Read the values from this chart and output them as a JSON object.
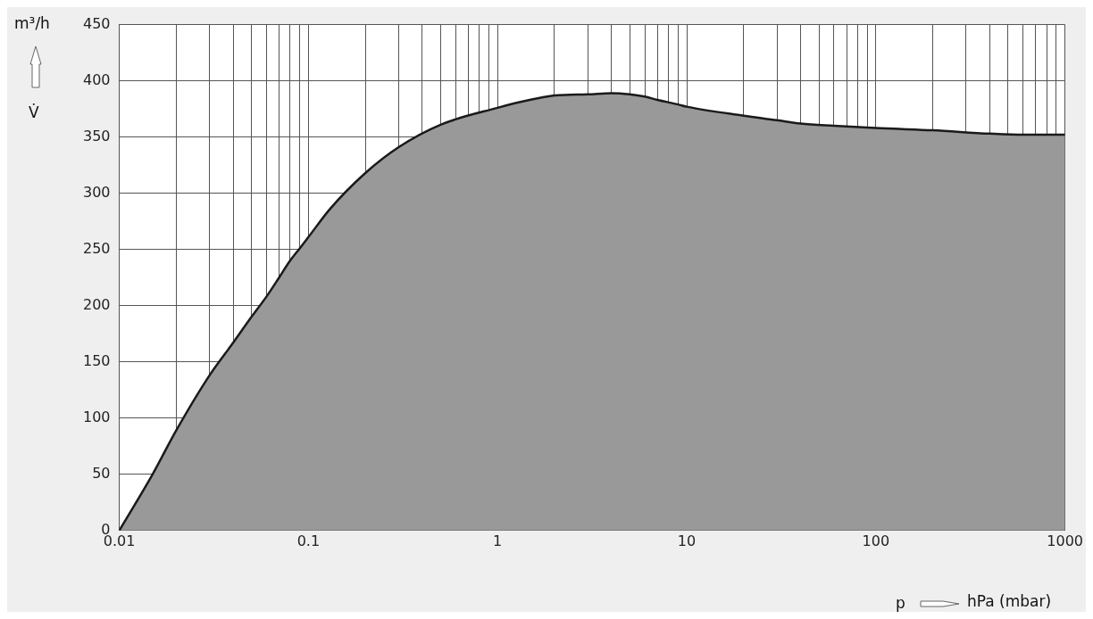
{
  "chart_data": {
    "type": "area",
    "xlabel": "hPa (mbar)",
    "ylabel": "m³/h",
    "annotations": [
      "p",
      "V̇"
    ],
    "log": "x",
    "grid": true,
    "legend": false,
    "xlim": [
      0.01,
      1000
    ],
    "ylim": [
      0,
      450
    ],
    "xticks": [
      0.01,
      {
        "value": 0.02,
        "label": null
      },
      {
        "value": 0.03,
        "label": null
      },
      {
        "value": 0.04,
        "label": null
      },
      {
        "value": 0.05,
        "label": null
      },
      {
        "value": 0.06,
        "label": null
      },
      {
        "value": 0.07,
        "label": null
      },
      {
        "value": 0.08,
        "label": null
      },
      {
        "value": 0.09,
        "label": null
      },
      0.1,
      {
        "value": 0.2,
        "label": null
      },
      {
        "value": 0.3,
        "label": null
      },
      {
        "value": 0.4,
        "label": null
      },
      {
        "value": 0.5,
        "label": null
      },
      {
        "value": 0.6,
        "label": null
      },
      {
        "value": 0.7,
        "label": null
      },
      {
        "value": 0.8,
        "label": null
      },
      {
        "value": 0.9,
        "label": null
      },
      1,
      {
        "value": 2,
        "label": null
      },
      {
        "value": 3,
        "label": null
      },
      {
        "value": 4,
        "label": null
      },
      {
        "value": 5,
        "label": null
      },
      {
        "value": 6,
        "label": null
      },
      {
        "value": 7,
        "label": null
      },
      {
        "value": 8,
        "label": null
      },
      {
        "value": 9,
        "label": null
      },
      10,
      {
        "value": 20,
        "label": null
      },
      {
        "value": 30,
        "label": null
      },
      {
        "value": 40,
        "label": null
      },
      {
        "value": 50,
        "label": null
      },
      {
        "value": 60,
        "label": null
      },
      {
        "value": 70,
        "label": null
      },
      {
        "value": 80,
        "label": null
      },
      {
        "value": 90,
        "label": null
      },
      100,
      {
        "value": 200,
        "label": null
      },
      {
        "value": 300,
        "label": null
      },
      {
        "value": 400,
        "label": null
      },
      {
        "value": 500,
        "label": null
      },
      {
        "value": 600,
        "label": null
      },
      {
        "value": 700,
        "label": null
      },
      {
        "value": 800,
        "label": null
      },
      {
        "value": 900,
        "label": null
      },
      1000
    ],
    "yticks": [
      0,
      50,
      100,
      150,
      200,
      250,
      300,
      350,
      400,
      450
    ],
    "series": [
      {
        "color": "#999999",
        "x": [
          0.01,
          0.015,
          0.02,
          0.03,
          0.04,
          0.05,
          0.06,
          0.07,
          0.08,
          0.09,
          0.1,
          0.13,
          0.2,
          0.3,
          0.5,
          1,
          1.39,
          2,
          3,
          4,
          5,
          6,
          7,
          9,
          10,
          20,
          30,
          40,
          60,
          100,
          200,
          400,
          600,
          1000
        ],
        "values": [
          0,
          50,
          89,
          138,
          167,
          190,
          208,
          225,
          240,
          251,
          261,
          286,
          318,
          341,
          361,
          376,
          382,
          387,
          388,
          389,
          388,
          386,
          383,
          379,
          377,
          369,
          365,
          362,
          360,
          358,
          356,
          353,
          352,
          352
        ]
      }
    ]
  }
}
